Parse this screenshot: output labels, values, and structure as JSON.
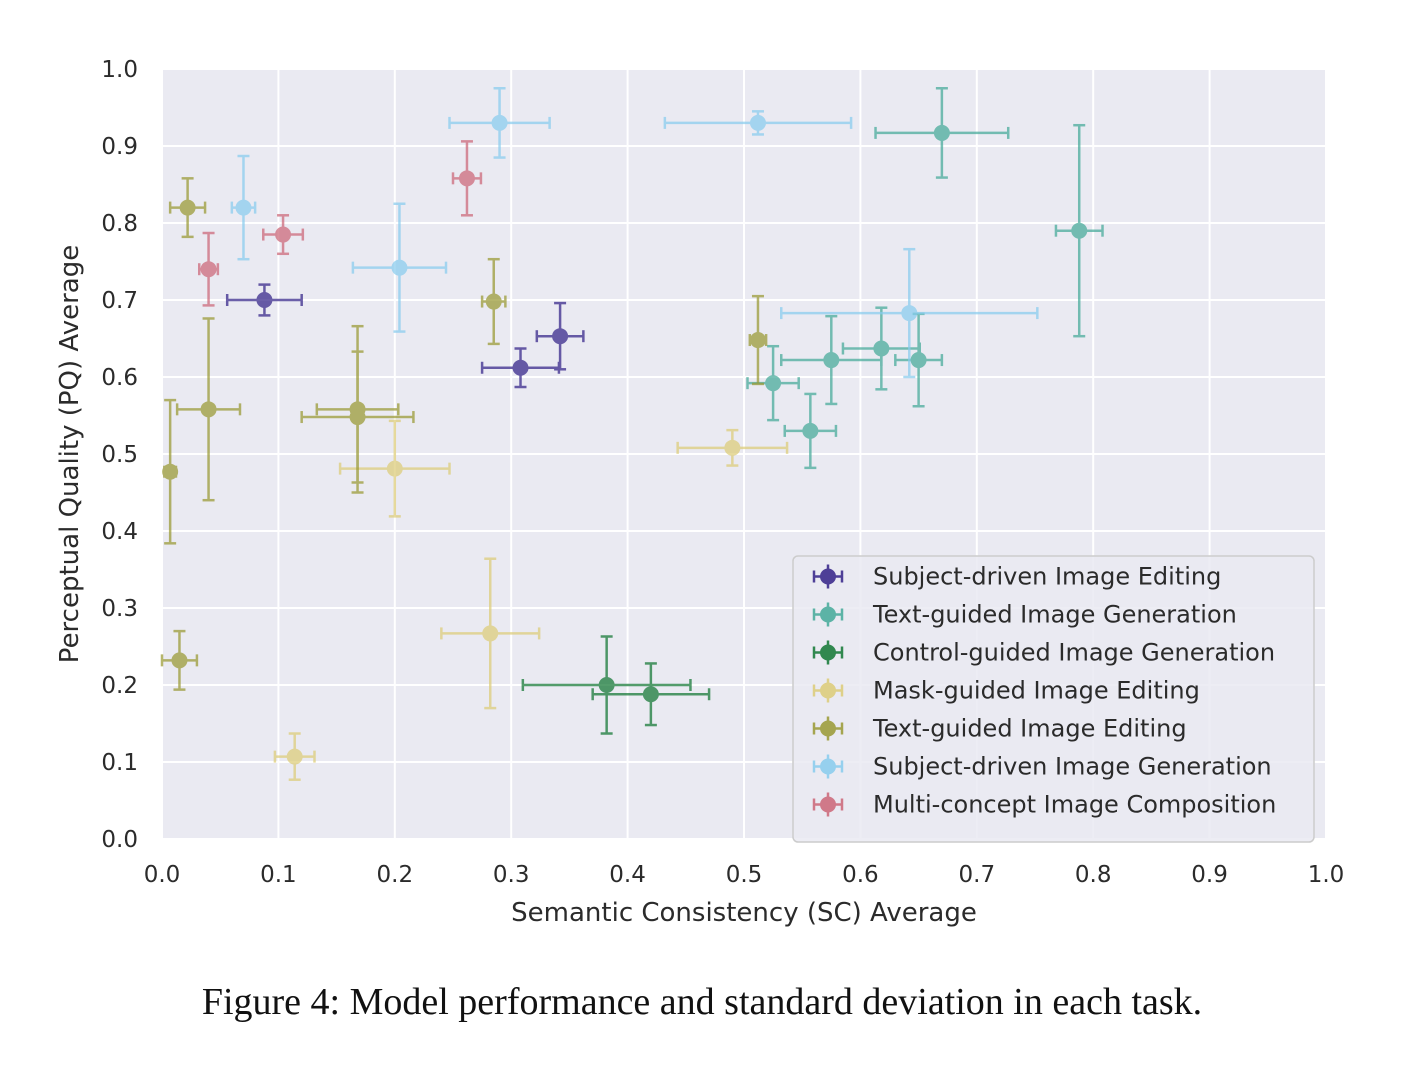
{
  "caption": "Figure 4: Model performance and standard deviation in each task.",
  "chart_data": {
    "type": "scatter",
    "title": "",
    "xlabel": "Semantic Consistency (SC) Average",
    "ylabel": "Perceptual Quality (PQ) Average",
    "xlim": [
      0.0,
      1.0
    ],
    "ylim": [
      0.0,
      1.0
    ],
    "xticks": [
      "0.0",
      "0.1",
      "0.2",
      "0.3",
      "0.4",
      "0.5",
      "0.6",
      "0.7",
      "0.8",
      "0.9",
      "1.0"
    ],
    "yticks": [
      "0.0",
      "0.1",
      "0.2",
      "0.3",
      "0.4",
      "0.5",
      "0.6",
      "0.7",
      "0.8",
      "0.9",
      "1.0"
    ],
    "grid": true,
    "legend_position": "lower-right",
    "background": "#eaeaf2",
    "series": [
      {
        "name": "Subject-driven Image Editing",
        "color": "#332288",
        "points": [
          {
            "x": 0.088,
            "y": 0.7,
            "xerr": 0.032,
            "yerr": 0.02
          },
          {
            "x": 0.308,
            "y": 0.612,
            "xerr": 0.033,
            "yerr": 0.025
          },
          {
            "x": 0.342,
            "y": 0.653,
            "xerr": 0.02,
            "yerr": 0.043
          }
        ]
      },
      {
        "name": "Text-guided Image Generation",
        "color": "#44aa99",
        "points": [
          {
            "x": 0.67,
            "y": 0.917,
            "xerr": 0.057,
            "yerr": 0.058
          },
          {
            "x": 0.788,
            "y": 0.79,
            "xerr": 0.02,
            "yerr": 0.137
          },
          {
            "x": 0.525,
            "y": 0.592,
            "xerr": 0.022,
            "yerr": 0.048
          },
          {
            "x": 0.557,
            "y": 0.53,
            "xerr": 0.022,
            "yerr": 0.048
          },
          {
            "x": 0.575,
            "y": 0.622,
            "xerr": 0.043,
            "yerr": 0.057
          },
          {
            "x": 0.618,
            "y": 0.637,
            "xerr": 0.033,
            "yerr": 0.053
          },
          {
            "x": 0.65,
            "y": 0.622,
            "xerr": 0.02,
            "yerr": 0.06
          }
        ]
      },
      {
        "name": "Control-guided Image Generation",
        "color": "#117733",
        "points": [
          {
            "x": 0.382,
            "y": 0.2,
            "xerr": 0.072,
            "yerr": 0.063
          },
          {
            "x": 0.42,
            "y": 0.188,
            "xerr": 0.05,
            "yerr": 0.04
          }
        ]
      },
      {
        "name": "Mask-guided Image Editing",
        "color": "#ddcc77",
        "points": [
          {
            "x": 0.49,
            "y": 0.508,
            "xerr": 0.047,
            "yerr": 0.023
          },
          {
            "x": 0.2,
            "y": 0.481,
            "xerr": 0.047,
            "yerr": 0.062
          },
          {
            "x": 0.282,
            "y": 0.267,
            "xerr": 0.042,
            "yerr": 0.097
          },
          {
            "x": 0.114,
            "y": 0.107,
            "xerr": 0.017,
            "yerr": 0.03
          }
        ]
      },
      {
        "name": "Text-guided Image Editing",
        "color": "#999933",
        "points": [
          {
            "x": 0.022,
            "y": 0.82,
            "xerr": 0.015,
            "yerr": 0.038
          },
          {
            "x": 0.285,
            "y": 0.698,
            "xerr": 0.01,
            "yerr": 0.055
          },
          {
            "x": 0.512,
            "y": 0.648,
            "xerr": 0.007,
            "yerr": 0.057
          },
          {
            "x": 0.04,
            "y": 0.558,
            "xerr": 0.027,
            "yerr": 0.118
          },
          {
            "x": 0.168,
            "y": 0.558,
            "xerr": 0.035,
            "yerr": 0.108
          },
          {
            "x": 0.168,
            "y": 0.548,
            "xerr": 0.048,
            "yerr": 0.085
          },
          {
            "x": 0.007,
            "y": 0.477,
            "xerr": 0.005,
            "yerr": 0.093
          },
          {
            "x": 0.015,
            "y": 0.232,
            "xerr": 0.015,
            "yerr": 0.038
          }
        ]
      },
      {
        "name": "Subject-driven Image Generation",
        "color": "#88ccee",
        "points": [
          {
            "x": 0.29,
            "y": 0.93,
            "xerr": 0.043,
            "yerr": 0.045
          },
          {
            "x": 0.512,
            "y": 0.93,
            "xerr": 0.08,
            "yerr": 0.015
          },
          {
            "x": 0.07,
            "y": 0.82,
            "xerr": 0.01,
            "yerr": 0.067
          },
          {
            "x": 0.204,
            "y": 0.742,
            "xerr": 0.04,
            "yerr": 0.083
          },
          {
            "x": 0.642,
            "y": 0.683,
            "xerr": 0.11,
            "yerr": 0.083
          }
        ]
      },
      {
        "name": "Multi-concept Image Composition",
        "color": "#cc6677",
        "points": [
          {
            "x": 0.262,
            "y": 0.858,
            "xerr": 0.012,
            "yerr": 0.048
          },
          {
            "x": 0.104,
            "y": 0.785,
            "xerr": 0.017,
            "yerr": 0.025
          },
          {
            "x": 0.04,
            "y": 0.74,
            "xerr": 0.008,
            "yerr": 0.047
          }
        ]
      }
    ]
  }
}
